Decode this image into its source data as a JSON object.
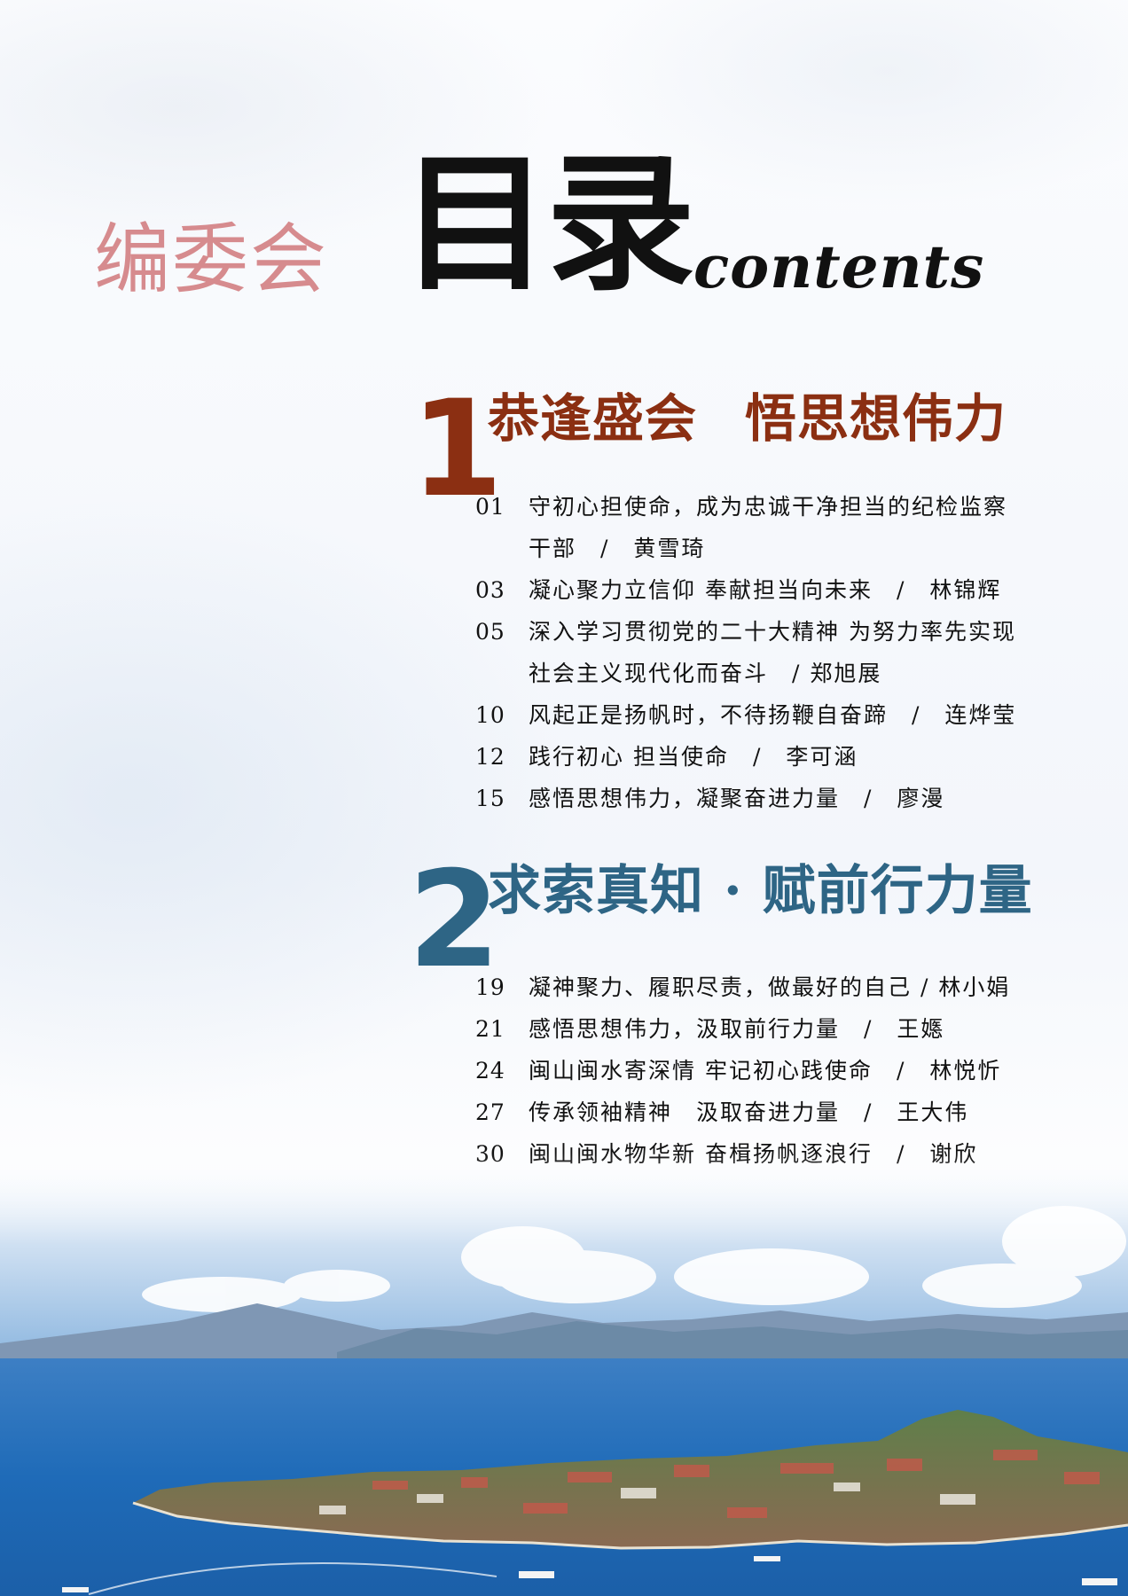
{
  "header": {
    "editorial_board": "编委会",
    "toc_title": "目录",
    "toc_title_en": "contents"
  },
  "sections": [
    {
      "number": "1",
      "title_part1": "恭逢盛会",
      "title_part2": "悟思想伟力",
      "color": "#8b2f12",
      "entries": [
        {
          "page": "01",
          "lines": [
            "守初心担使命，成为忠诚干净担当的纪检监察",
            "干部　/　黄雪琦"
          ]
        },
        {
          "page": "03",
          "lines": [
            "凝心聚力立信仰 奉献担当向未来　/　林锦辉"
          ]
        },
        {
          "page": "05",
          "lines": [
            "深入学习贯彻党的二十大精神 为努力率先实现",
            "社会主义现代化而奋斗　/ 郑旭展"
          ]
        },
        {
          "page": "10",
          "lines": [
            "风起正是扬帆时，不待扬鞭自奋蹄　/　连烨莹"
          ]
        },
        {
          "page": "12",
          "lines": [
            "践行初心 担当使命　/　李可涵"
          ]
        },
        {
          "page": "15",
          "lines": [
            "感悟思想伟力，凝聚奋进力量　/　廖漫"
          ]
        }
      ]
    },
    {
      "number": "2",
      "title_part1": "求索真知 · 赋前行力量",
      "color": "#2e6585",
      "entries": [
        {
          "page": "19",
          "lines": [
            "凝神聚力、履职尽责，做最好的自己 / 林小娟"
          ]
        },
        {
          "page": "21",
          "lines": [
            "感悟思想伟力，汲取前行力量　/　王嫕"
          ]
        },
        {
          "page": "24",
          "lines": [
            "闽山闽水寄深情 牢记初心践使命　/　林悦忻"
          ]
        },
        {
          "page": "27",
          "lines": [
            "传承领袖精神　汲取奋进力量　/　王大伟"
          ]
        },
        {
          "page": "30",
          "lines": [
            "闽山闽水物华新 奋楫扬帆逐浪行　/　谢欣"
          ]
        }
      ]
    }
  ]
}
